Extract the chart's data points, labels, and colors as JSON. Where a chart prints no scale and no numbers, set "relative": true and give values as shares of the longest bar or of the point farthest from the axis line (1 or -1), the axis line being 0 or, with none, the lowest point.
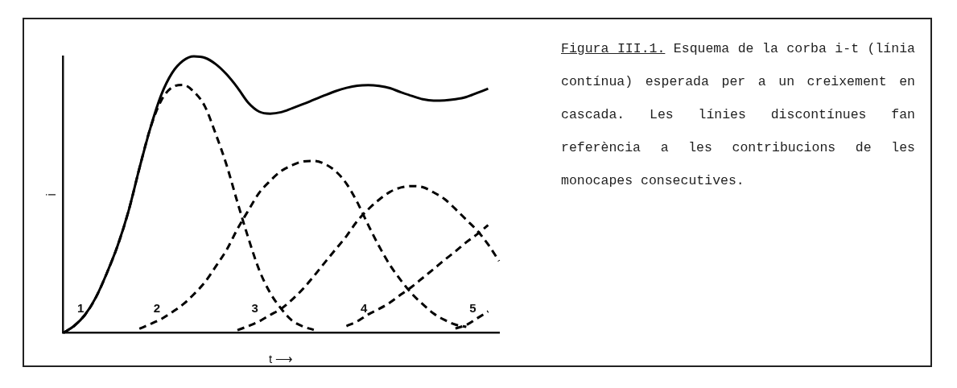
{
  "chart_data": {
    "type": "line",
    "relative": true,
    "xlabel": "t ⟶",
    "ylabel": "i",
    "grid": false,
    "legend": false,
    "marker": "none",
    "categories": [
      null,
      null,
      null,
      null,
      null,
      null,
      null,
      null,
      null,
      null,
      null,
      null,
      null,
      null,
      null,
      null,
      null,
      null,
      null,
      null,
      null,
      null,
      null,
      null,
      null,
      null,
      null,
      null,
      null,
      null,
      null,
      null,
      null,
      null,
      null,
      null,
      null,
      null,
      null,
      null,
      null
    ],
    "annotations": [
      "Figura III.1.",
      "Esquema de la corba i-t (línia contínua) esperada per a un creixement en cascada. Les línies discontínues fan referència a les contribucions de les monocapes consecutives."
    ],
    "series": [
      {
        "color": "#000000",
        "line_style": "solid",
        "values": [
          0,
          0.025,
          0.065,
          0.128,
          0.215,
          0.315,
          0.44,
          0.595,
          0.74,
          0.86,
          0.94,
          0.984,
          1,
          0.995,
          0.972,
          0.935,
          0.887,
          0.832,
          0.8,
          0.793,
          0.798,
          0.812,
          0.827,
          0.843,
          0.859,
          0.874,
          0.886,
          0.894,
          0.896,
          0.893,
          0.885,
          0.87,
          0.857,
          0.845,
          0.84,
          0.841,
          0.845,
          0.853,
          0.868,
          0.883,
          null
        ]
      },
      {
        "name": "1",
        "color": "#000000",
        "line_style": "dashed",
        "values": [
          0,
          0.025,
          0.065,
          0.128,
          0.215,
          0.315,
          0.44,
          0.595,
          0.74,
          0.84,
          0.888,
          0.897,
          0.872,
          0.82,
          0.72,
          0.607,
          0.472,
          0.343,
          0.227,
          0.145,
          0.088,
          0.045,
          0.024,
          0.011,
          null,
          null,
          null,
          null,
          null,
          null,
          null,
          null,
          null,
          null,
          null,
          null,
          null,
          null,
          null,
          null,
          null
        ]
      },
      {
        "name": "2",
        "color": "#000000",
        "line_style": "dashed",
        "values": [
          null,
          null,
          null,
          null,
          null,
          null,
          null,
          0.015,
          0.032,
          0.05,
          0.075,
          0.103,
          0.14,
          0.183,
          0.24,
          0.3,
          0.376,
          0.443,
          0.507,
          0.55,
          0.585,
          0.606,
          0.62,
          0.622,
          0.611,
          0.585,
          0.54,
          0.472,
          0.39,
          0.313,
          0.245,
          0.19,
          0.142,
          0.104,
          0.07,
          0.047,
          0.03,
          0.022,
          null,
          null,
          null
        ]
      },
      {
        "name": "3",
        "color": "#000000",
        "line_style": "dashed",
        "values": [
          null,
          null,
          null,
          null,
          null,
          null,
          null,
          null,
          null,
          null,
          null,
          null,
          null,
          null,
          null,
          null,
          0.01,
          0.025,
          0.042,
          0.065,
          0.087,
          0.12,
          0.159,
          0.205,
          0.254,
          0.302,
          0.35,
          0.405,
          0.447,
          0.482,
          0.51,
          0.526,
          0.531,
          0.527,
          0.508,
          0.484,
          0.448,
          0.409,
          0.37,
          0.32,
          0.26
        ]
      },
      {
        "name": "4",
        "color": "#000000",
        "line_style": "dashed",
        "values": [
          null,
          null,
          null,
          null,
          null,
          null,
          null,
          null,
          null,
          null,
          null,
          null,
          null,
          null,
          null,
          null,
          null,
          null,
          null,
          null,
          null,
          null,
          null,
          null,
          null,
          null,
          0.025,
          0.042,
          0.067,
          0.087,
          0.11,
          0.139,
          0.167,
          0.199,
          0.231,
          0.264,
          0.295,
          0.328,
          0.357,
          0.39,
          null
        ]
      },
      {
        "name": "5",
        "color": "#000000",
        "line_style": "dashed",
        "values": [
          null,
          null,
          null,
          null,
          null,
          null,
          null,
          null,
          null,
          null,
          null,
          null,
          null,
          null,
          null,
          null,
          null,
          null,
          null,
          null,
          null,
          null,
          null,
          null,
          null,
          null,
          null,
          null,
          null,
          null,
          null,
          null,
          null,
          null,
          null,
          null,
          0.016,
          0.029,
          0.053,
          0.078,
          null
        ]
      }
    ]
  }
}
